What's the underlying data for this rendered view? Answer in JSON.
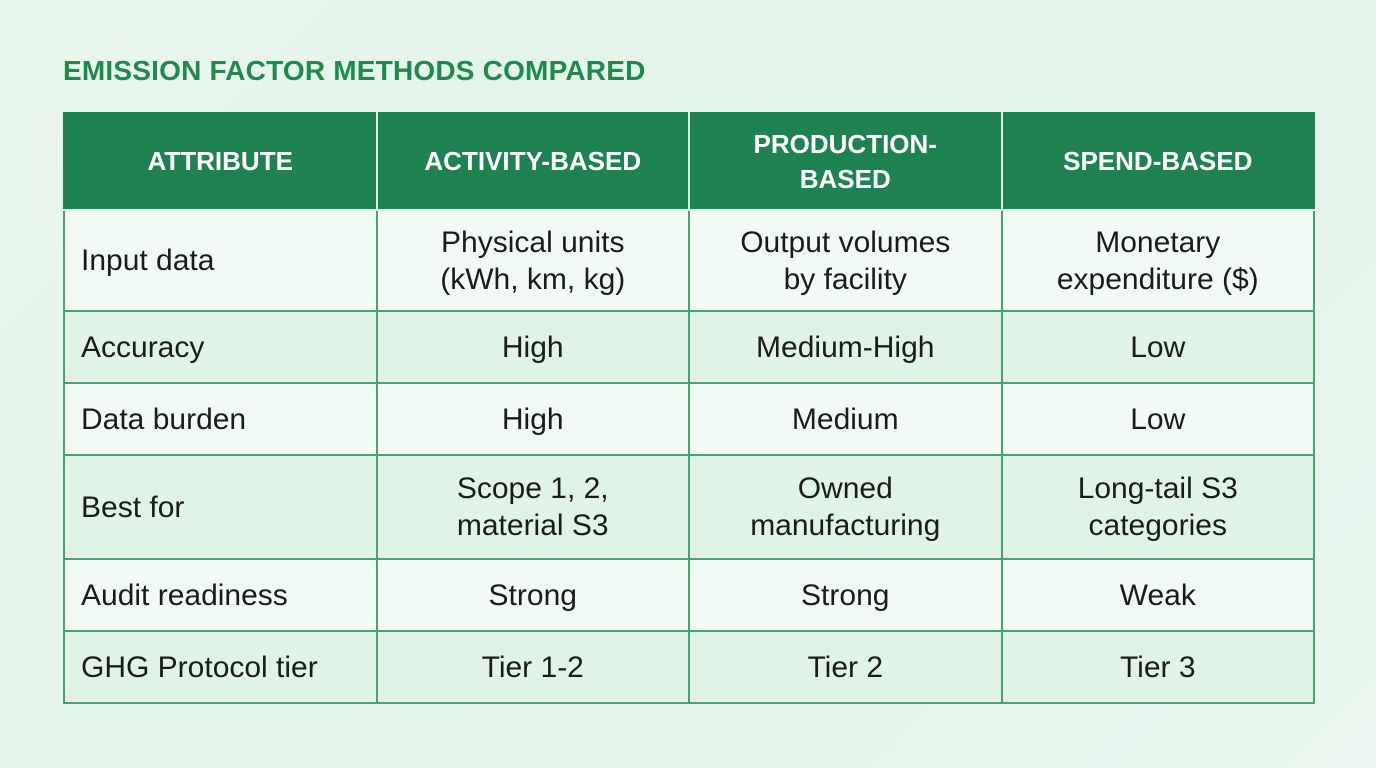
{
  "title": "EMISSION FACTOR METHODS COMPARED",
  "headers": [
    "ATTRIBUTE",
    "ACTIVITY-BASED",
    "PRODUCTION-BASED",
    "SPEND-BASED"
  ],
  "rows": [
    {
      "attribute": "Input data",
      "activity": "Physical units (kWh, km, kg)",
      "production": "Output volumes by facility",
      "spend": "Monetary expenditure ($)"
    },
    {
      "attribute": "Accuracy",
      "activity": "High",
      "production": "Medium-High",
      "spend": "Low"
    },
    {
      "attribute": "Data burden",
      "activity": "High",
      "production": "Medium",
      "spend": "Low"
    },
    {
      "attribute": "Best for",
      "activity": "Scope 1, 2, material S3",
      "production": "Owned manufacturing",
      "spend": "Long-tail S3 categories"
    },
    {
      "attribute": "Audit readiness",
      "activity": "Strong",
      "production": "Strong",
      "spend": "Weak"
    },
    {
      "attribute": "GHG Protocol tier",
      "activity": "Tier 1-2",
      "production": "Tier 2",
      "spend": "Tier 3"
    }
  ],
  "colors": {
    "title": "#1f8a4c",
    "header_bg": "#1f8351",
    "border": "#4aa36f",
    "row_light": "#f2faf5",
    "row_tint": "#e0f3e7"
  }
}
